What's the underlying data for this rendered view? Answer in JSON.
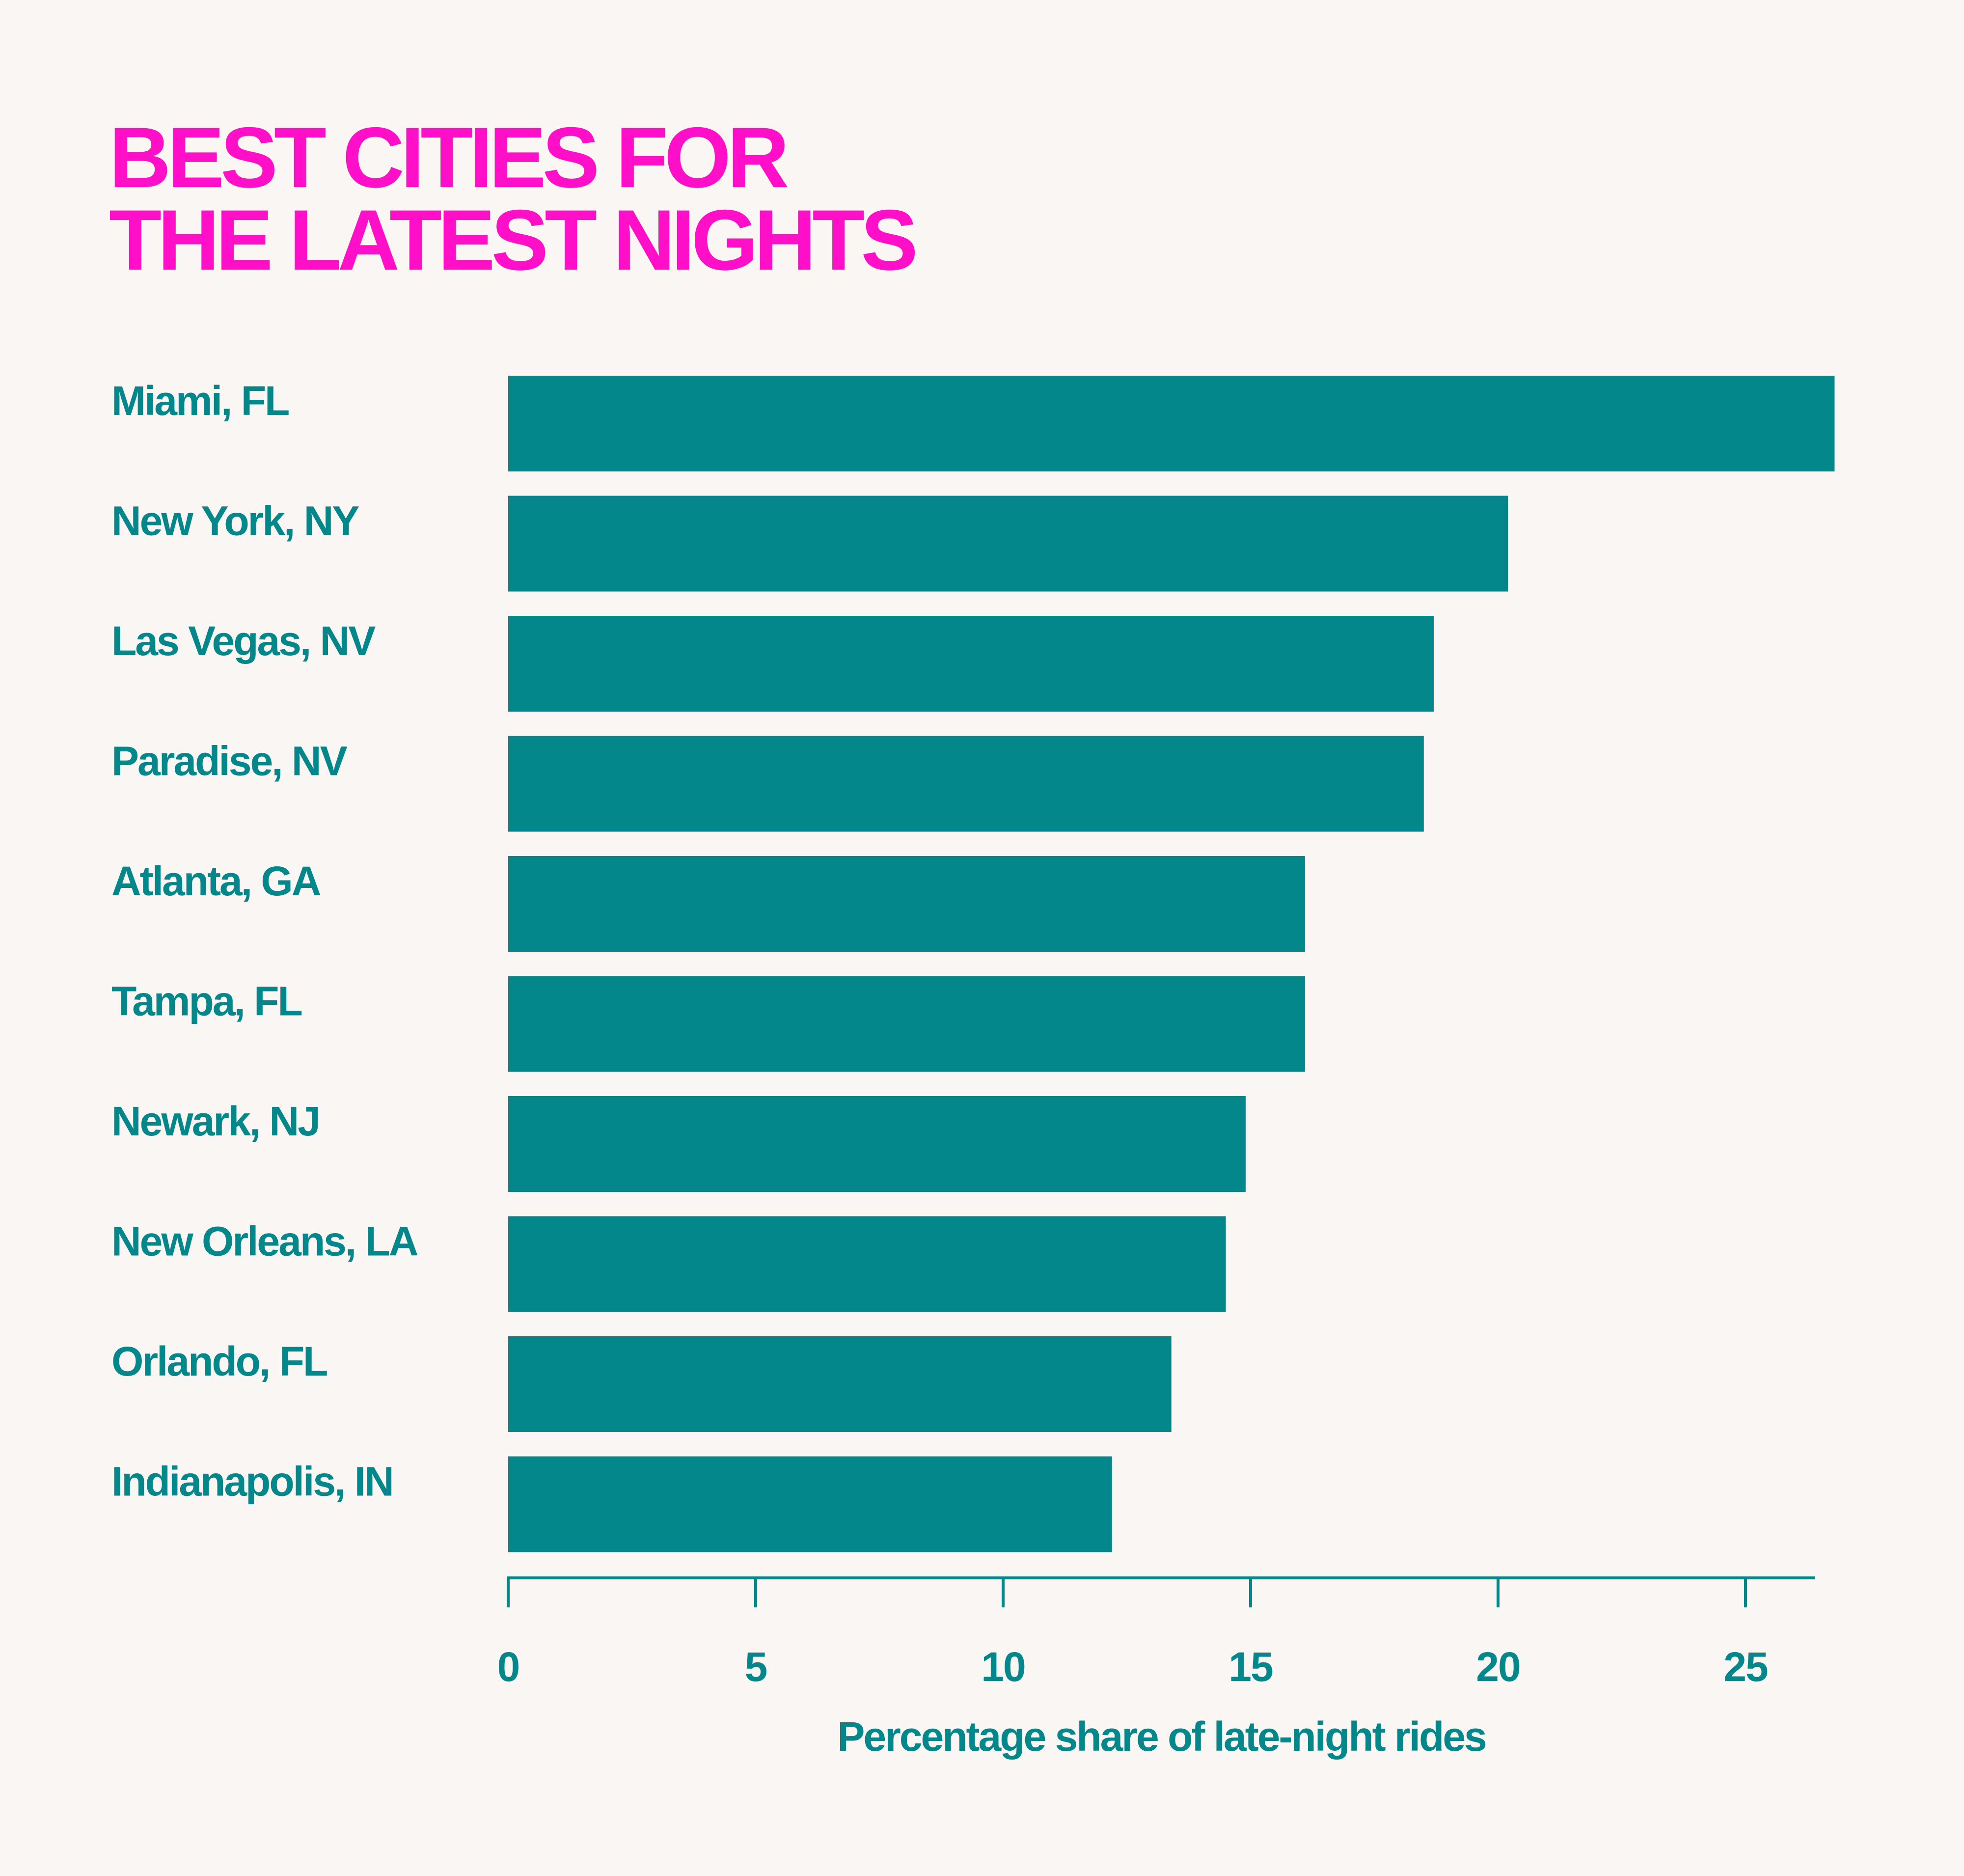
{
  "colors": {
    "background": "#f9f6f3",
    "title": "#ff0fc7",
    "bar": "#04878a",
    "text": "#04878a"
  },
  "chart_data": {
    "type": "bar",
    "orientation": "horizontal",
    "title_lines": [
      "BEST CITIES FOR",
      "THE LATEST NIGHTS"
    ],
    "categories": [
      "Miami, FL",
      "New York, NY",
      "Las Vegas, NV",
      "Paradise, NV",
      "Atlanta, GA",
      "Tampa, FL",
      "Newark, NJ",
      "New Orleans, LA",
      "Orlando, FL",
      "Indianapolis, IN"
    ],
    "values": [
      26.8,
      20.2,
      18.7,
      18.5,
      16.1,
      16.1,
      14.9,
      14.5,
      13.4,
      12.2
    ],
    "xlabel": "Percentage share of late-night rides",
    "ylabel": "",
    "xlim": [
      0,
      26.4
    ],
    "xticks": [
      0,
      5,
      10,
      15,
      20,
      25
    ],
    "grid": false,
    "legend": "none"
  }
}
